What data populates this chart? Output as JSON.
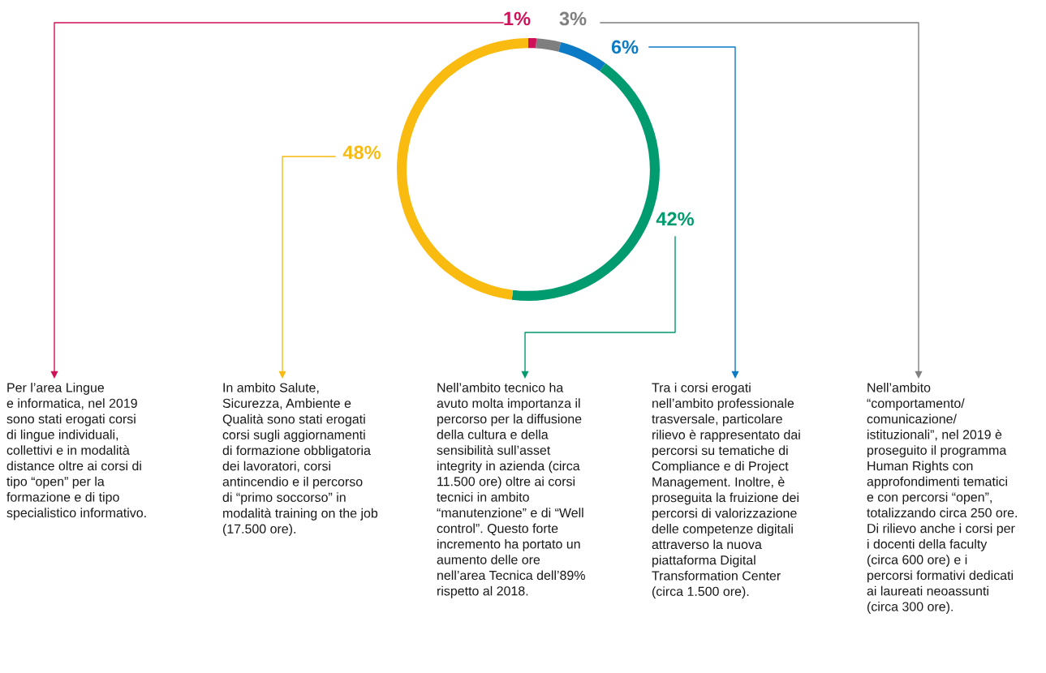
{
  "chart_data": {
    "type": "donut",
    "categories": [
      null,
      null,
      null,
      null,
      null
    ],
    "values": [
      1,
      3,
      6,
      42,
      48
    ],
    "colors": [
      "#d0115a",
      "#7f7f7f",
      "#0a7bc4",
      "#009b6e",
      "#f9bb10"
    ],
    "value_labels": [
      "1%",
      "3%",
      "6%",
      "42%",
      "48%"
    ],
    "annotations": [
      "Per l’area Lingue\ne informatica, nel 2019\nsono stati erogati corsi\ndi lingue individuali,\ncollettivi e in modalità\ndistance oltre ai corsi di\ntipo “open” per la\nformazione e di tipo\nspecialistico informativo.",
      "In ambito Salute,\nSicurezza, Ambiente e\nQualità sono stati erogati\ncorsi sugli aggiornamenti\ndi formazione obbligatoria\ndei lavoratori, corsi\nantincendio e il percorso\ndi “primo soccorso” in\nmodalità training on the job\n(17.500 ore).",
      "Nell’ambito tecnico ha\navuto molta importanza il\npercorso per la diffusione\ndella cultura e della\nsensibilità sull’asset\nintegrity in azienda (circa\n11.500 ore) oltre ai corsi\ntecnici in ambito\n“manutenzione” e di “Well\ncontrol”. Questo forte\nincremento ha portato un\naumento delle ore\nnell’area Tecnica dell’89%\nrispetto al 2018.",
      "Tra i corsi erogati\nnell’ambito professionale\ntrasversale, particolare\nrilievo è rappresentato dai\npercorsi su tematiche di\nCompliance e di Project\nManagement. Inoltre, è\nproseguita la fruizione dei\npercorsi di valorizzazione\ndelle competenze digitali\nattraverso la nuova\npiattaforma Digital\nTransformation Center\n(circa 1.500 ore).",
      "Nell’ambito\n“comportamento/\ncomunicazione/\nistituzionali”, nel 2019 è\nproseguito il programma\nHuman Rights con\napprofondimenti tematici\ne con percorsi “open”,\ntotalizzando circa 250 ore.\nDi rilievo anche i corsi per\ni docenti della faculty\n(circa 600 ore) e i\npercorsi formativi dedicati\nai laureati neoassunti\n(circa 300 ore)."
    ]
  }
}
